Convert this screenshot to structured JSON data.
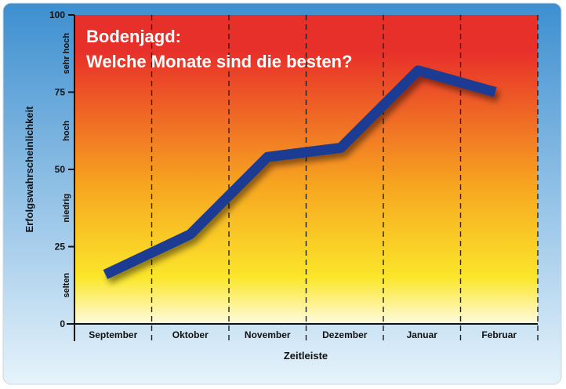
{
  "chart_data": {
    "type": "line",
    "title_line1": "Bodenjagd:",
    "title_line2": "Welche Monate sind die besten?",
    "xlabel": "Zeitleiste",
    "ylabel": "Erfolgswahrscheinlichkeit",
    "categories": [
      "September",
      "Oktober",
      "November",
      "Dezember",
      "Januar",
      "Februar"
    ],
    "ylim": [
      0,
      100
    ],
    "yticks": [
      0,
      25,
      50,
      75,
      100
    ],
    "levels": [
      {
        "label": "selten",
        "from": 0,
        "to": 25
      },
      {
        "label": "niedrig",
        "from": 25,
        "to": 50
      },
      {
        "label": "hoch",
        "from": 50,
        "to": 75
      },
      {
        "label": "sehr hoch",
        "from": 75,
        "to": 100
      }
    ],
    "line_x": [
      0.4,
      1.5,
      2.5,
      3.45,
      4.45,
      5.45
    ],
    "values": [
      16,
      29,
      54,
      57,
      82,
      75
    ],
    "line_color": "#1f3a93",
    "grid": "dashed-vertical",
    "gradient": [
      "#e8302a",
      "#f7a520",
      "#fbe62a",
      "#fffbe0"
    ]
  }
}
